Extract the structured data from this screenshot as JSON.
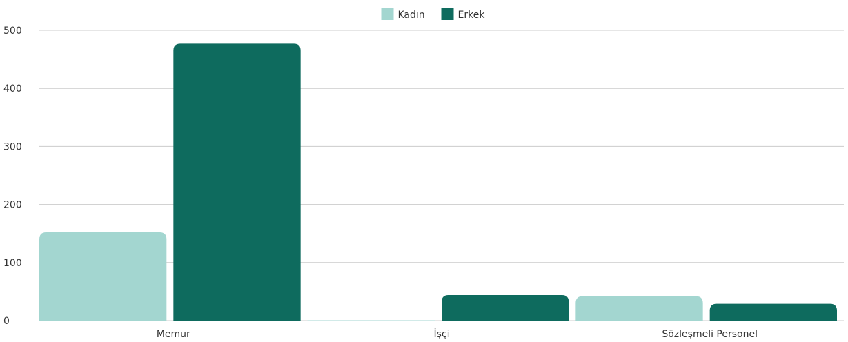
{
  "chart_data": {
    "type": "bar",
    "categories": [
      "Memur",
      "İşçi",
      "Sözleşmeli Personel"
    ],
    "series": [
      {
        "name": "Kadın",
        "color": "#a3d6d0",
        "values": [
          152,
          0,
          42
        ]
      },
      {
        "name": "Erkek",
        "color": "#0e6b5e",
        "values": [
          477,
          44,
          29
        ]
      }
    ],
    "ylim": [
      0,
      500
    ],
    "yticks": [
      0,
      100,
      200,
      300,
      400,
      500
    ],
    "grid": true,
    "legend_position": "top-center"
  }
}
